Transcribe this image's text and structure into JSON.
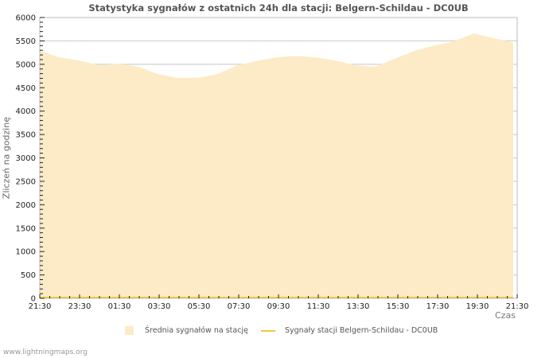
{
  "title": "Statystyka sygnałów z ostatnich 24h dla stacji: Belgern-Schildau - DC0UB",
  "axes": {
    "ylabel": "Zliczeń na godzinę",
    "xlabel": "Czas",
    "yticks": [
      "0",
      "500",
      "1000",
      "1500",
      "2000",
      "2500",
      "3000",
      "3500",
      "4000",
      "4500",
      "5000",
      "5500",
      "6000"
    ],
    "xticks": [
      "21:30",
      "23:30",
      "01:30",
      "03:30",
      "05:30",
      "07:30",
      "09:30",
      "11:30",
      "13:30",
      "15:30",
      "17:30",
      "19:30",
      "21:30"
    ]
  },
  "legend": {
    "items": [
      {
        "label": "Średnia sygnałów na stację",
        "color": "#fdebc7"
      },
      {
        "label": "Sygnały stacji Belgern-Schildau - DC0UB",
        "color": "#f5c83a"
      }
    ]
  },
  "footer": "www.lightningmaps.org",
  "colors": {
    "area_fill": "#fdebc7",
    "station_line": "#f5c83a",
    "grid": "#c8c8c8",
    "axis": "#bbbbbb"
  },
  "chart_data": {
    "type": "area",
    "title": "Statystyka sygnałów z ostatnich 24h dla stacji: Belgern-Schildau - DC0UB",
    "xlabel": "Czas",
    "ylabel": "Zliczeń na godzinę",
    "ylim": [
      0,
      6000
    ],
    "grid": true,
    "legend_position": "bottom",
    "x": [
      "21:30",
      "22:30",
      "23:30",
      "00:30",
      "01:30",
      "02:30",
      "03:30",
      "04:30",
      "05:30",
      "06:30",
      "07:30",
      "08:30",
      "09:30",
      "10:30",
      "11:30",
      "12:30",
      "13:30",
      "14:30",
      "15:30",
      "16:30",
      "17:30",
      "18:30",
      "19:30",
      "20:30",
      "21:30"
    ],
    "series": [
      {
        "name": "Średnia sygnałów na stację",
        "type": "area",
        "values": [
          5290,
          5150,
          5080,
          4980,
          5010,
          4950,
          4790,
          4710,
          4710,
          4790,
          4980,
          5070,
          5150,
          5180,
          5150,
          5080,
          4980,
          4950,
          5120,
          5290,
          5400,
          5490,
          5660,
          5560,
          5460
        ]
      },
      {
        "name": "Sygnały stacji Belgern-Schildau - DC0UB",
        "type": "line",
        "values": [
          0,
          0,
          0,
          0,
          0,
          0,
          0,
          0,
          0,
          0,
          0,
          0,
          0,
          0,
          0,
          0,
          0,
          0,
          0,
          0,
          0,
          0,
          0,
          0,
          0
        ]
      }
    ]
  }
}
